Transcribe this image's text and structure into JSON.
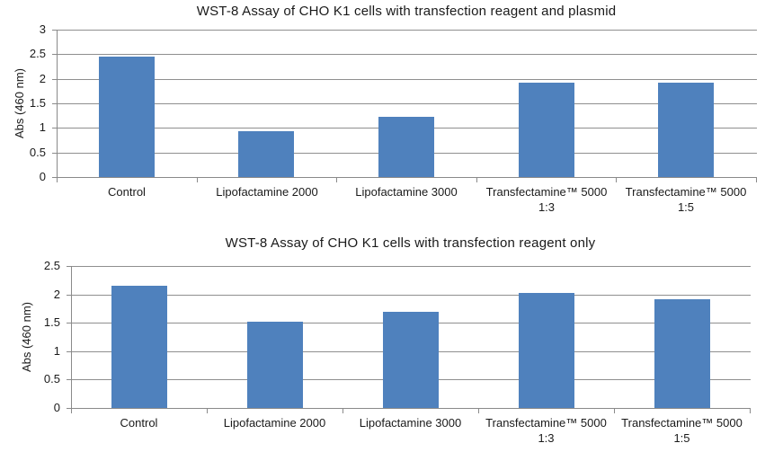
{
  "figure": {
    "background": "#ffffff",
    "text_color": "#1a1a1a"
  },
  "chart_data": [
    {
      "type": "bar",
      "title": "WST-8 Assay of CHO K1 cells with transfection reagent and plasmid",
      "xlabel": "",
      "ylabel": "Abs (460 nm)",
      "categories": [
        "Control",
        "Lipofactamine 2000",
        "Lipofactamine 3000",
        "Transfectamine™ 5000\n1:3",
        "Transfectamine™ 5000\n1:5"
      ],
      "values": [
        2.45,
        0.94,
        1.22,
        1.92,
        1.92
      ],
      "ylim": [
        0,
        3
      ],
      "yticks": [
        0,
        0.5,
        1,
        1.5,
        2,
        2.5,
        3
      ],
      "grid": true,
      "legend": "none",
      "bar_color": "#4F81BD",
      "gridline_color": "#8f8f8f",
      "axis_color": "#8a8a8a"
    },
    {
      "type": "bar",
      "title": "WST-8 Assay of CHO K1 cells with transfection reagent only",
      "xlabel": "",
      "ylabel": "Abs (460 nm)",
      "categories": [
        "Control",
        "Lipofactamine 2000",
        "Lipofactamine 3000",
        "Transfectamine™ 5000\n1:3",
        "Transfectamine™ 5000\n1:5"
      ],
      "values": [
        2.15,
        1.52,
        1.7,
        2.02,
        1.91
      ],
      "ylim": [
        0,
        2.5
      ],
      "yticks": [
        0,
        0.5,
        1,
        1.5,
        2,
        2.5
      ],
      "grid": true,
      "legend": "none",
      "bar_color": "#4F81BD",
      "gridline_color": "#8f8f8f",
      "axis_color": "#8a8a8a"
    }
  ]
}
